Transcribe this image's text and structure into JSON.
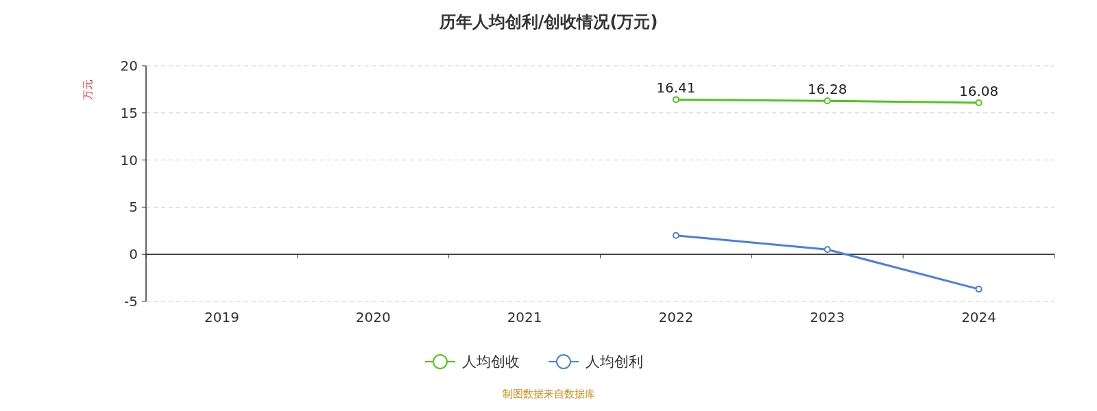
{
  "chart_data": {
    "type": "line",
    "title": "历年人均创利/创收情况(万元)",
    "ylabel": "万元",
    "categories": [
      "2019",
      "2020",
      "2021",
      "2022",
      "2023",
      "2024"
    ],
    "series": [
      {
        "name": "人均创收",
        "color": "#52c41a",
        "values": [
          null,
          null,
          null,
          16.41,
          16.28,
          16.08
        ],
        "value_labels": [
          null,
          null,
          null,
          "16.41",
          "16.28",
          "16.08"
        ]
      },
      {
        "name": "人均创利",
        "color": "#4a7fe0",
        "values": [
          null,
          null,
          null,
          2.0,
          0.5,
          -3.7
        ]
      }
    ],
    "ylim": [
      -5,
      20
    ],
    "yticks": [
      -5,
      0,
      5,
      10,
      15,
      20
    ],
    "grid": "y",
    "legend": "bottom",
    "marker": "circle",
    "line_style": "solid",
    "annotations": [
      "制图数据来自数据库"
    ]
  }
}
